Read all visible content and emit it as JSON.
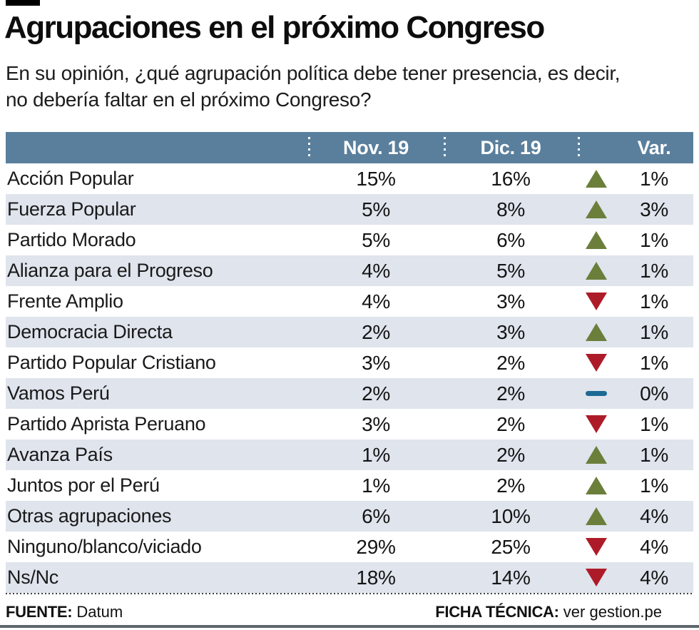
{
  "header": {
    "title": "Agrupaciones en el próximo Congreso",
    "subtitle": "En su opinión, ¿qué agrupación política debe tener presencia, es decir, no debería faltar en el próximo Congreso?"
  },
  "chart_data": {
    "type": "table",
    "title": "Agrupaciones en el próximo Congreso",
    "columns": [
      "Nov. 19",
      "Dic. 19",
      "Var."
    ],
    "rows": [
      {
        "party": "Acción Popular",
        "nov": "15%",
        "dic": "16%",
        "trend": "up",
        "var": "1%"
      },
      {
        "party": "Fuerza Popular",
        "nov": "5%",
        "dic": "8%",
        "trend": "up",
        "var": "3%"
      },
      {
        "party": "Partido Morado",
        "nov": "5%",
        "dic": "6%",
        "trend": "up",
        "var": "1%"
      },
      {
        "party": "Alianza para el Progreso",
        "nov": "4%",
        "dic": "5%",
        "trend": "up",
        "var": "1%"
      },
      {
        "party": "Frente Amplio",
        "nov": "4%",
        "dic": "3%",
        "trend": "down",
        "var": "1%"
      },
      {
        "party": "Democracia Directa",
        "nov": "2%",
        "dic": "3%",
        "trend": "up",
        "var": "1%"
      },
      {
        "party": "Partido Popular Cristiano",
        "nov": "3%",
        "dic": "2%",
        "trend": "down",
        "var": "1%"
      },
      {
        "party": "Vamos Perú",
        "nov": "2%",
        "dic": "2%",
        "trend": "same",
        "var": "0%"
      },
      {
        "party": "Partido Aprista Peruano",
        "nov": "3%",
        "dic": "2%",
        "trend": "down",
        "var": "1%"
      },
      {
        "party": "Avanza País",
        "nov": "1%",
        "dic": "2%",
        "trend": "up",
        "var": "1%"
      },
      {
        "party": "Juntos por el Perú",
        "nov": "1%",
        "dic": "2%",
        "trend": "up",
        "var": "1%"
      },
      {
        "party": "Otras agrupaciones",
        "nov": "6%",
        "dic": "10%",
        "trend": "up",
        "var": "4%"
      },
      {
        "party": "Ninguno/blanco/viciado",
        "nov": "29%",
        "dic": "25%",
        "trend": "down",
        "var": "4%"
      },
      {
        "party": "Ns/Nc",
        "nov": "18%",
        "dic": "14%",
        "trend": "down",
        "var": "4%"
      }
    ]
  },
  "footer": {
    "source_label": "FUENTE:",
    "source_value": "Datum",
    "ficha_label": "FICHA TÉCNICA:",
    "ficha_value": "ver gestion.pe"
  },
  "colors": {
    "header_bg": "#5A7F9D",
    "row_alt_bg": "#DFE4ED",
    "trend_up": "#6B7F3B",
    "trend_down": "#AE1B28",
    "trend_same": "#1D6A94"
  }
}
